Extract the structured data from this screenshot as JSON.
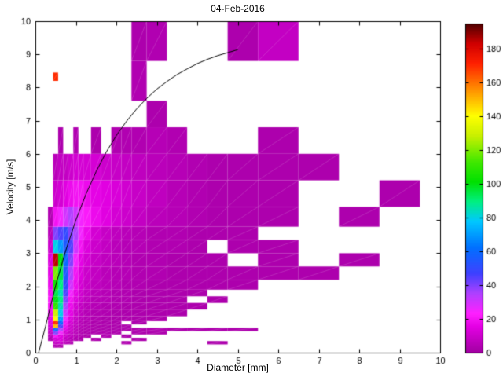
{
  "figure": {
    "background_color": "#FFFFFF",
    "curve_color": "#000000",
    "axis_color": "#000000"
  },
  "chart_data": {
    "type": "heatmap",
    "title": "04-Feb-2016",
    "xlabel": "Diameter [mm]",
    "ylabel": "Velocity [m/s]",
    "xlim": [
      0,
      10
    ],
    "ylim": [
      0,
      10
    ],
    "x_ticks": [
      0,
      1,
      2,
      3,
      4,
      5,
      6,
      7,
      8,
      9,
      10
    ],
    "y_ticks": [
      0,
      1,
      2,
      3,
      4,
      5,
      6,
      7,
      8,
      9,
      10
    ],
    "grid": false,
    "diameter_bin_edges_mm": [
      0.312,
      0.437,
      0.562,
      0.687,
      0.812,
      0.937,
      1.062,
      1.187,
      1.375,
      1.625,
      1.875,
      2.125,
      2.375,
      2.75,
      3.25,
      3.75,
      4.25,
      4.75,
      5.5,
      6.5,
      7.5,
      8.5,
      9.5
    ],
    "velocity_bin_edges_ms": [
      0.05,
      0.15,
      0.25,
      0.35,
      0.45,
      0.55,
      0.65,
      0.75,
      0.85,
      0.95,
      1.1,
      1.3,
      1.5,
      1.7,
      1.9,
      2.2,
      2.6,
      3.0,
      3.4,
      3.8,
      4.4,
      5.2,
      6.0,
      6.8,
      7.6,
      8.8,
      10.0
    ],
    "counts": [
      [
        0,
        0,
        0,
        0,
        0,
        0,
        0,
        0,
        0,
        0,
        0,
        0,
        0,
        0,
        0,
        0,
        0,
        0,
        0,
        0,
        0,
        0
      ],
      [
        0,
        4,
        3,
        0,
        0,
        0,
        0,
        0,
        0,
        0,
        0,
        0,
        0,
        0,
        0,
        0,
        0,
        0,
        0,
        0,
        0,
        0
      ],
      [
        0,
        8,
        10,
        6,
        4,
        0,
        0,
        0,
        0,
        0,
        0,
        4,
        0,
        0,
        0,
        0,
        3,
        0,
        0,
        0,
        0,
        0
      ],
      [
        4,
        12,
        14,
        8,
        6,
        4,
        3,
        0,
        3,
        0,
        0,
        0,
        3,
        0,
        0,
        0,
        0,
        0,
        0,
        0,
        0,
        0
      ],
      [
        6,
        20,
        15,
        10,
        7,
        5,
        4,
        3,
        0,
        4,
        0,
        3,
        0,
        0,
        0,
        0,
        0,
        0,
        0,
        0,
        0,
        0
      ],
      [
        8,
        40,
        25,
        12,
        8,
        6,
        4,
        3,
        3,
        4,
        3,
        0,
        3,
        3,
        0,
        0,
        0,
        0,
        0,
        0,
        0,
        0
      ],
      [
        10,
        60,
        35,
        15,
        10,
        6,
        4,
        4,
        3,
        3,
        3,
        3,
        3,
        4,
        3,
        3,
        3,
        3,
        0,
        0,
        0,
        0
      ],
      [
        12,
        150,
        45,
        18,
        10,
        7,
        5,
        4,
        3,
        3,
        3,
        3,
        0,
        0,
        0,
        0,
        0,
        0,
        0,
        0,
        0,
        0
      ],
      [
        14,
        170,
        60,
        20,
        12,
        8,
        5,
        4,
        3,
        3,
        3,
        0,
        3,
        0,
        0,
        0,
        0,
        0,
        0,
        0,
        0,
        0
      ],
      [
        16,
        140,
        70,
        25,
        14,
        9,
        6,
        5,
        4,
        3,
        3,
        3,
        3,
        3,
        0,
        0,
        0,
        0,
        0,
        0,
        0,
        0
      ],
      [
        18,
        130,
        80,
        30,
        16,
        10,
        7,
        5,
        4,
        4,
        3,
        3,
        3,
        3,
        3,
        0,
        0,
        0,
        0,
        0,
        0,
        0
      ],
      [
        20,
        110,
        85,
        35,
        18,
        12,
        8,
        6,
        5,
        4,
        4,
        3,
        3,
        3,
        3,
        3,
        0,
        0,
        0,
        0,
        0,
        0
      ],
      [
        22,
        100,
        90,
        40,
        20,
        14,
        10,
        7,
        5,
        5,
        4,
        4,
        3,
        3,
        3,
        0,
        3,
        0,
        0,
        0,
        0,
        0
      ],
      [
        20,
        95,
        85,
        45,
        25,
        16,
        11,
        8,
        6,
        5,
        4,
        4,
        3,
        3,
        3,
        3,
        0,
        0,
        0,
        0,
        0,
        0
      ],
      [
        18,
        105,
        90,
        50,
        30,
        18,
        12,
        9,
        7,
        6,
        5,
        4,
        4,
        3,
        3,
        3,
        3,
        3,
        0,
        0,
        0,
        0
      ],
      [
        16,
        120,
        95,
        55,
        35,
        20,
        14,
        10,
        8,
        6,
        5,
        5,
        4,
        4,
        3,
        3,
        3,
        3,
        3,
        3,
        0,
        0
      ],
      [
        14,
        185,
        100,
        60,
        40,
        25,
        16,
        12,
        9,
        7,
        6,
        5,
        4,
        4,
        3,
        3,
        3,
        0,
        3,
        0,
        3,
        0
      ],
      [
        10,
        80,
        70,
        55,
        45,
        30,
        20,
        14,
        10,
        8,
        6,
        5,
        5,
        4,
        4,
        3,
        0,
        3,
        3,
        0,
        0,
        0
      ],
      [
        6,
        40,
        45,
        50,
        40,
        35,
        25,
        18,
        12,
        9,
        7,
        6,
        5,
        4,
        4,
        3,
        3,
        3,
        0,
        0,
        0,
        0
      ],
      [
        4,
        20,
        25,
        30,
        35,
        30,
        25,
        22,
        18,
        15,
        12,
        10,
        8,
        6,
        5,
        4,
        3,
        3,
        3,
        0,
        3,
        0
      ],
      [
        0,
        10,
        12,
        15,
        18,
        20,
        20,
        18,
        16,
        15,
        13,
        11,
        9,
        7,
        5,
        4,
        3,
        3,
        3,
        0,
        0,
        3
      ],
      [
        0,
        6,
        8,
        8,
        10,
        12,
        12,
        12,
        12,
        10,
        9,
        8,
        7,
        6,
        5,
        4,
        3,
        3,
        3,
        3,
        0,
        0
      ],
      [
        0,
        0,
        3,
        0,
        0,
        4,
        0,
        0,
        3,
        0,
        4,
        4,
        4,
        5,
        4,
        0,
        0,
        0,
        3,
        0,
        0,
        0
      ],
      [
        0,
        0,
        0,
        0,
        0,
        0,
        0,
        0,
        0,
        0,
        0,
        0,
        0,
        3,
        0,
        0,
        0,
        0,
        0,
        0,
        0,
        0
      ],
      [
        0,
        0,
        0,
        0,
        0,
        0,
        0,
        0,
        0,
        0,
        0,
        0,
        4,
        0,
        0,
        0,
        0,
        0,
        0,
        0,
        0,
        0
      ],
      [
        0,
        0,
        0,
        0,
        0,
        0,
        0,
        0,
        0,
        0,
        0,
        0,
        3,
        4,
        0,
        0,
        0,
        3,
        8,
        0,
        0,
        0
      ]
    ],
    "outlier_cells": [
      {
        "d_range": [
          0.437,
          0.562
        ],
        "v_range": [
          8.2,
          8.45
        ],
        "value": 170
      }
    ],
    "colorbar": {
      "min": 0,
      "max": 195,
      "ticks": [
        0,
        20,
        40,
        60,
        80,
        100,
        120,
        140,
        160,
        180
      ],
      "position": "right"
    },
    "colormap_stops": [
      [
        0.0,
        "#A000A0"
      ],
      [
        0.08,
        "#E400E4"
      ],
      [
        0.12,
        "#FF20FF"
      ],
      [
        0.18,
        "#B040FF"
      ],
      [
        0.24,
        "#4040FF"
      ],
      [
        0.32,
        "#0070FF"
      ],
      [
        0.4,
        "#00C8FF"
      ],
      [
        0.46,
        "#00F080"
      ],
      [
        0.52,
        "#00E000"
      ],
      [
        0.58,
        "#40E800"
      ],
      [
        0.66,
        "#C8F000"
      ],
      [
        0.72,
        "#FFFF00"
      ],
      [
        0.8,
        "#FF9000"
      ],
      [
        0.88,
        "#FF2000"
      ],
      [
        0.94,
        "#D00000"
      ],
      [
        1.0,
        "#500000"
      ]
    ],
    "fall_speed_curve": {
      "x": [
        0.08,
        0.25,
        0.5,
        0.75,
        1.0,
        1.25,
        1.5,
        1.75,
        2.0,
        2.25,
        2.5,
        2.75,
        3.0,
        3.25,
        3.5,
        3.75,
        4.0,
        4.25,
        4.5,
        4.75,
        5.0
      ],
      "y": [
        0.0,
        0.79,
        2.02,
        3.08,
        4.0,
        4.78,
        5.46,
        6.05,
        6.55,
        6.98,
        7.35,
        7.67,
        7.95,
        8.18,
        8.39,
        8.56,
        8.72,
        8.85,
        8.96,
        9.05,
        9.14
      ]
    }
  }
}
